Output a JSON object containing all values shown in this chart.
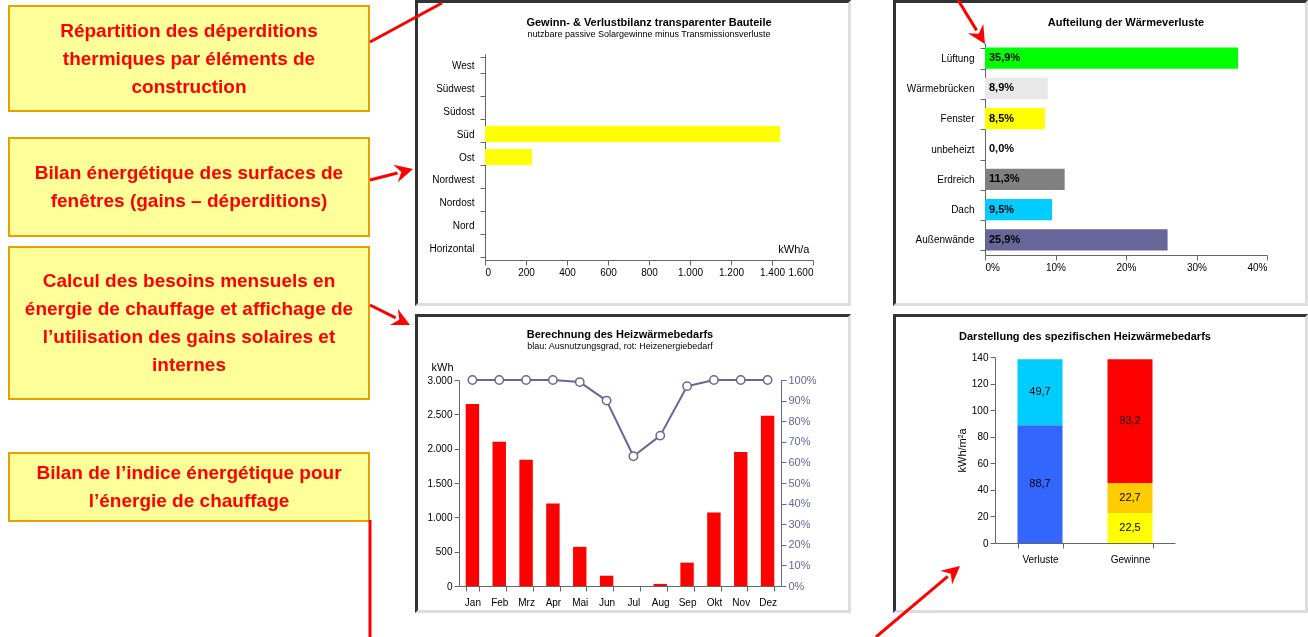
{
  "chart_data": [
    {
      "type": "other",
      "annotations": [
        "Répartition des déperditions thermiques par éléments de construction",
        "Bilan énergétique des surfaces de fenêtres (gains – déperditions)",
        "Calcul des besoins mensuels en énergie de chauffage et affichage de l’utilisation des gains solaires et internes",
        "Bilan de l’indice énergétique pour l’énergie de chauffage"
      ]
    },
    {
      "type": "bar",
      "orientation": "horizontal",
      "title": "Gewinn- & Verlustbilanz transparenter Bauteile",
      "subtitle": "nutzbare passive Solargewinne minus Transmissionsverluste",
      "xlabel": "kWh/a",
      "categories": [
        "West",
        "Südwest",
        "Südost",
        "Süd",
        "Ost",
        "Nordwest",
        "Nordost",
        "Nord",
        "Horizontal"
      ],
      "values": [
        0,
        0,
        0,
        1440,
        230,
        0,
        0,
        0,
        0
      ],
      "color": "#ffff00",
      "xlim": [
        0,
        1600
      ],
      "xticks": [
        0,
        200,
        400,
        600,
        800,
        {
          "value": 1000,
          "label": "1.000"
        },
        {
          "value": 1200,
          "label": "1.200"
        },
        {
          "value": 1400,
          "label": "1.400"
        },
        {
          "value": 1600,
          "label": "1.600"
        }
      ]
    },
    {
      "type": "bar",
      "orientation": "horizontal",
      "title": "Aufteilung der Wärmeverluste",
      "categories": [
        "Lüftung",
        "Wärmebrücken",
        "Fenster",
        "unbeheizt",
        "Erdreich",
        "Dach",
        "Außenwände"
      ],
      "values": [
        35.9,
        8.9,
        8.5,
        0,
        11.3,
        9.5,
        25.9
      ],
      "colors": [
        "#00ff00",
        "#e8e8e8",
        "#ffff00",
        "#ffffff",
        "#808080",
        "#00ccff",
        "#666699"
      ],
      "value_labels": [
        "35,9%",
        "8,9%",
        "8,5%",
        "0,0%",
        "11,3%",
        "9,5%",
        "25,9%"
      ],
      "xlim": [
        0,
        40
      ],
      "xticks": [
        {
          "value": 0,
          "label": "0%"
        },
        {
          "value": 10,
          "label": "10%"
        },
        {
          "value": 20,
          "label": "20%"
        },
        {
          "value": 30,
          "label": "30%"
        },
        {
          "value": 40,
          "label": "40%"
        }
      ]
    },
    {
      "type": "bar",
      "title": "Berechnung des Heizwärmebedarfs",
      "subtitle": "blau: Ausnutzungsgrad, rot: Heizenergiebedarf",
      "ylabel": "kWh",
      "marker": "circle",
      "categories": [
        "Jan",
        "Feb",
        "Mrz",
        "Apr",
        "Mai",
        "Jun",
        "Jul",
        "Aug",
        "Sep",
        "Okt",
        "Nov",
        "Dez"
      ],
      "series": [
        {
          "type": "bar",
          "color": "#ff0000",
          "values": [
            2650,
            2100,
            1840,
            1200,
            570,
            150,
            0,
            30,
            340,
            1070,
            1950,
            2480
          ]
        },
        {
          "type": "line",
          "axis": "y2",
          "color": "#666699",
          "values": [
            100,
            100,
            100,
            100,
            99,
            90,
            63,
            73,
            97,
            100,
            100,
            100
          ]
        }
      ],
      "ylim": [
        0,
        3000
      ],
      "yticks": [
        0,
        500,
        {
          "value": 1000,
          "label": "1.000"
        },
        {
          "value": 1500,
          "label": "1.500"
        },
        {
          "value": 2000,
          "label": "2.000"
        },
        {
          "value": 2500,
          "label": "2.500"
        },
        {
          "value": 3000,
          "label": "3.000"
        }
      ],
      "y2lim": [
        0,
        100
      ],
      "y2ticks": [
        {
          "value": 0,
          "label": "0%"
        },
        {
          "value": 10,
          "label": "10%"
        },
        {
          "value": 20,
          "label": "20%"
        },
        {
          "value": 30,
          "label": "30%"
        },
        {
          "value": 40,
          "label": "40%"
        },
        {
          "value": 50,
          "label": "50%"
        },
        {
          "value": 60,
          "label": "60%"
        },
        {
          "value": 70,
          "label": "70%"
        },
        {
          "value": 80,
          "label": "80%"
        },
        {
          "value": 90,
          "label": "90%"
        },
        {
          "value": 100,
          "label": "100%"
        }
      ]
    },
    {
      "type": "bar",
      "stacked": true,
      "title": "Darstellung des spezifischen Heizwärmebedarfs",
      "ylabel": "kWh/m²a",
      "categories": [
        "Verluste",
        "Gewinne"
      ],
      "series": [
        {
          "color": "#3366ff",
          "values": [
            88.7,
            null
          ],
          "value_labels": [
            "88,7",
            null
          ]
        },
        {
          "color": "#00ccff",
          "values": [
            49.7,
            null
          ],
          "value_labels": [
            "49,7",
            null
          ]
        },
        {
          "color": "#ffff00",
          "values": [
            null,
            22.5
          ],
          "value_labels": [
            null,
            "22,5"
          ]
        },
        {
          "color": "#ffcc00",
          "values": [
            null,
            22.7
          ],
          "value_labels": [
            null,
            "22,7"
          ]
        },
        {
          "color": "#ff0000",
          "values": [
            null,
            93.2
          ],
          "value_labels": [
            null,
            "93,2"
          ]
        }
      ],
      "ylim": [
        0,
        140
      ],
      "yticks": [
        0,
        20,
        40,
        60,
        80,
        100,
        120,
        140
      ]
    }
  ]
}
